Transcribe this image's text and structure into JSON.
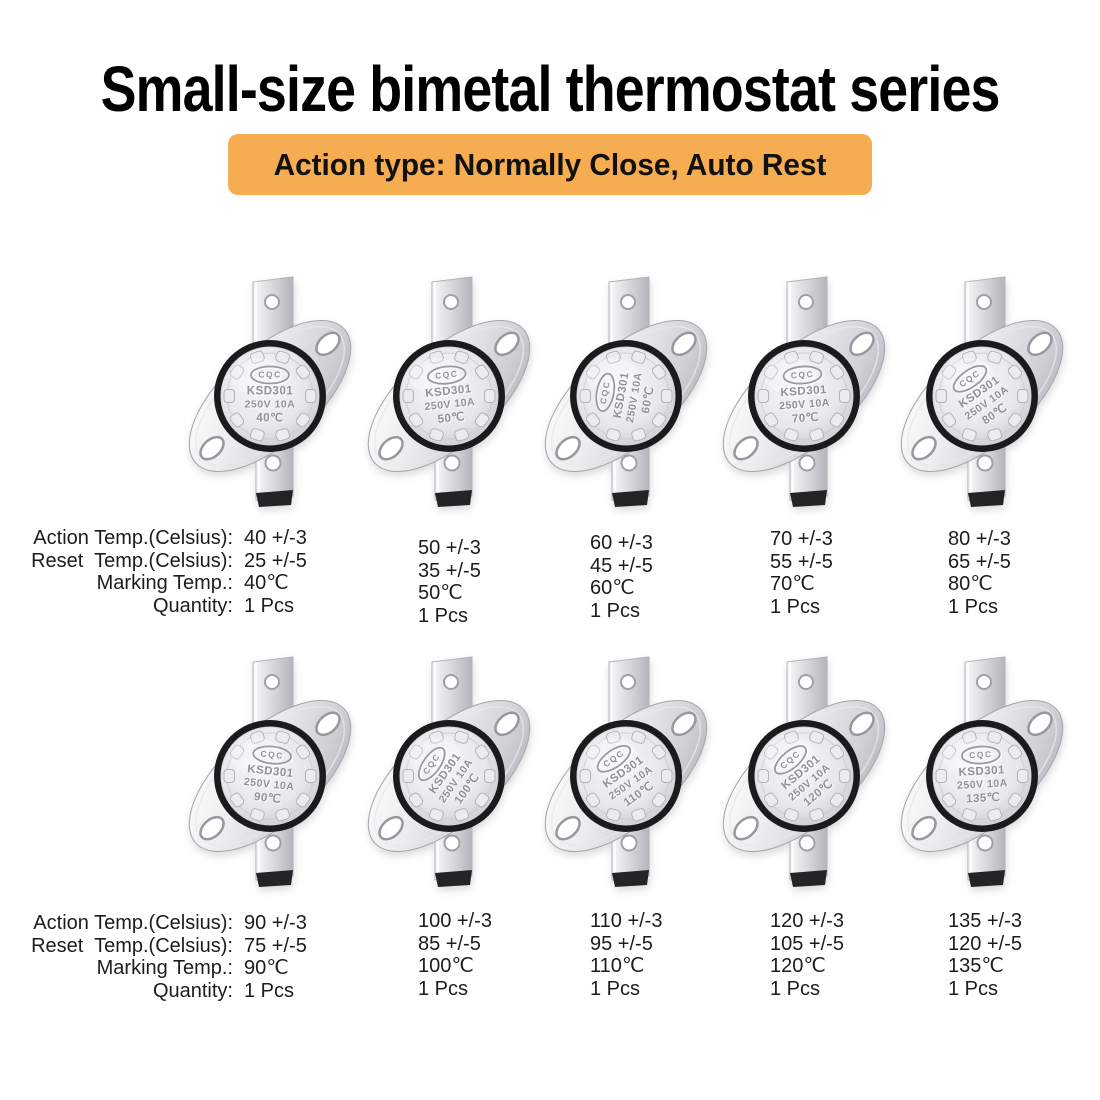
{
  "title": "Small-size bimetal thermostat series",
  "banner": {
    "text": "Action type: Normally Close, Auto Rest",
    "bg_color": "#F6AD52"
  },
  "spec_labels": {
    "action": "Action Temp.(Celsius):",
    "reset": "Reset  Temp.(Celsius):",
    "marking": "Marking Temp.:",
    "quantity": "Quantity:"
  },
  "disc": {
    "logo": "CQC",
    "model": "KSD301",
    "rating": "250V 10A"
  },
  "colors": {
    "ring": "#1b1b1d",
    "metal_dark": "#a9a9af",
    "black_tip": "#242427",
    "background": "#ffffff"
  },
  "rows": [
    {
      "items": [
        {
          "disc_temp": "40℃",
          "action": "40 +/-3",
          "reset": "25 +/-5",
          "marking": "40℃",
          "quantity": "1 Pcs",
          "text_rotation": 0
        },
        {
          "disc_temp": "50℃",
          "action": "50 +/-3",
          "reset": "35 +/-5",
          "marking": "50℃",
          "quantity": "1 Pcs",
          "text_rotation": -6
        },
        {
          "disc_temp": "60℃",
          "action": "60 +/-3",
          "reset": "45 +/-5",
          "marking": "60℃",
          "quantity": "1 Pcs",
          "text_rotation": -80
        },
        {
          "disc_temp": "70℃",
          "action": "70 +/-3",
          "reset": "55 +/-5",
          "marking": "70℃",
          "quantity": "1 Pcs",
          "text_rotation": -4
        },
        {
          "disc_temp": "80℃",
          "action": "80 +/-3",
          "reset": "65 +/-5",
          "marking": "80℃",
          "quantity": "1 Pcs",
          "text_rotation": -35
        }
      ]
    },
    {
      "items": [
        {
          "disc_temp": "90℃",
          "action": "90 +/-3",
          "reset": "75 +/-5",
          "marking": "90℃",
          "quantity": "1 Pcs",
          "text_rotation": 6
        },
        {
          "disc_temp": "100℃",
          "action": "100 +/-3",
          "reset": "85 +/-5",
          "marking": "100℃",
          "quantity": "1 Pcs",
          "text_rotation": -55
        },
        {
          "disc_temp": "110℃",
          "action": "110 +/-3",
          "reset": "95 +/-5",
          "marking": "110℃",
          "quantity": "1 Pcs",
          "text_rotation": -35
        },
        {
          "disc_temp": "120℃",
          "action": "120 +/-3",
          "reset": "105 +/-5",
          "marking": "120℃",
          "quantity": "1 Pcs",
          "text_rotation": -40
        },
        {
          "disc_temp": "135℃",
          "action": "135 +/-3",
          "reset": "120 +/-5",
          "marking": "135℃",
          "quantity": "1 Pcs",
          "text_rotation": -3
        }
      ]
    }
  ]
}
